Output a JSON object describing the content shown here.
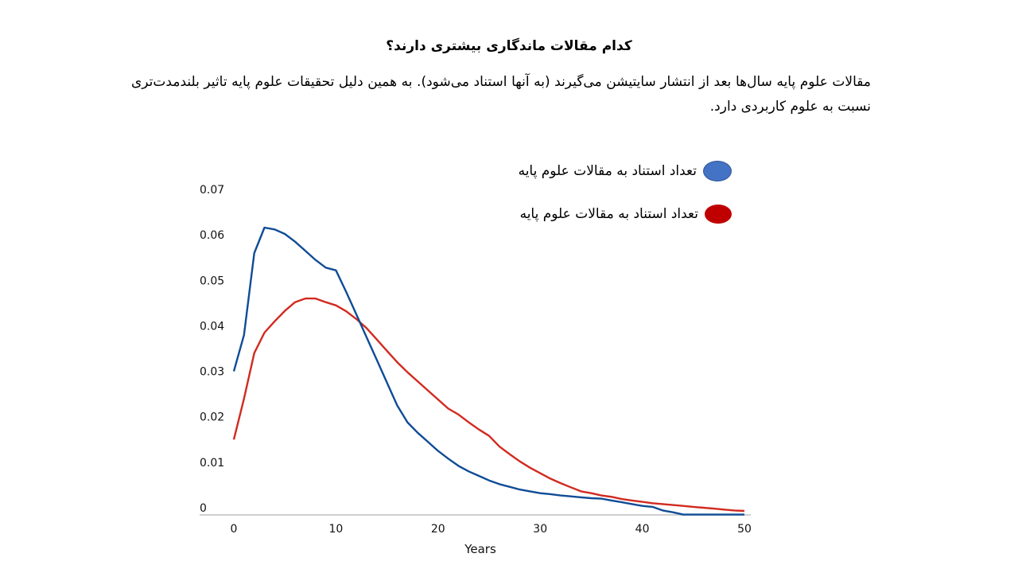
{
  "slide": {
    "title": "کدام مقالات ماندگاری بیشتری دارند؟",
    "paragraph": "مقالات علوم پایه سال‌ها بعد از انتشار سایتیشن می‌گیرند (به آنها استناد می‌شود). به همین دلیل تحقیقات علوم پایه تاثیر بلندمدت‌تری نسبت به علوم کاربردی دارد."
  },
  "legend": [
    {
      "label": "تعداد استناد به مقالات علوم پایه",
      "color": "#4472C4"
    },
    {
      "label": "تعداد استناد به مقالات علوم پایه",
      "color": "#C00000"
    }
  ],
  "chart_data": {
    "type": "line",
    "title": "",
    "xlabel": "Years",
    "ylabel": "",
    "xlim": [
      0,
      50
    ],
    "ylim": [
      0,
      0.07
    ],
    "x_ticks": [
      "0",
      "10",
      "20",
      "30",
      "40",
      "50"
    ],
    "y_ticks": [
      "0",
      "0.01",
      "0.02",
      "0.03",
      "0.04",
      "0.05",
      "0.06",
      "0.07"
    ],
    "grid": false,
    "legend_position": "top-right",
    "x": [
      0,
      1,
      2,
      3,
      4,
      5,
      6,
      7,
      8,
      9,
      10,
      11,
      12,
      13,
      14,
      15,
      16,
      17,
      18,
      19,
      20,
      21,
      22,
      23,
      24,
      25,
      26,
      27,
      28,
      29,
      30,
      31,
      32,
      33,
      34,
      35,
      36,
      37,
      38,
      39,
      40,
      41,
      42,
      43,
      44,
      45,
      46,
      47,
      48,
      49,
      50
    ],
    "series": [
      {
        "name": "تعداد استناد به مقالات علوم پایه",
        "line_color": "#0F4C96",
        "legend_color": "#4472C4",
        "values": [
          0.03,
          0.038,
          0.056,
          0.0616,
          0.0612,
          0.0602,
          0.0585,
          0.0565,
          0.0545,
          0.0528,
          0.0522,
          0.0475,
          0.0425,
          0.0375,
          0.0325,
          0.0275,
          0.0225,
          0.0188,
          0.0165,
          0.0145,
          0.0125,
          0.0108,
          0.0092,
          0.008,
          0.007,
          0.006,
          0.0052,
          0.0046,
          0.004,
          0.0036,
          0.0032,
          0.003,
          0.0027,
          0.0025,
          0.0023,
          0.0021,
          0.002,
          0.0016,
          0.0012,
          0.0008,
          0.0004,
          0.0002,
          -0.0006,
          -0.001,
          -0.0015,
          -0.0015,
          -0.0015,
          -0.0015,
          -0.0015,
          -0.0015,
          -0.0015
        ]
      },
      {
        "name": "تعداد استناد به مقالات علوم پایه",
        "line_color": "#D12A1F",
        "legend_color": "#C00000",
        "values": [
          0.015,
          0.024,
          0.034,
          0.0385,
          0.041,
          0.0433,
          0.0452,
          0.046,
          0.046,
          0.0452,
          0.0445,
          0.0432,
          0.0415,
          0.0395,
          0.037,
          0.0345,
          0.032,
          0.0298,
          0.0278,
          0.0258,
          0.0238,
          0.0218,
          0.0205,
          0.0188,
          0.0172,
          0.0158,
          0.0135,
          0.0118,
          0.0102,
          0.0088,
          0.0076,
          0.0064,
          0.0054,
          0.0045,
          0.0036,
          0.0032,
          0.0027,
          0.0024,
          0.0019,
          0.0016,
          0.0013,
          0.001,
          0.0008,
          0.0006,
          0.0004,
          0.0002,
          0.0,
          -0.0002,
          -0.0004,
          -0.0006,
          -0.0007
        ]
      }
    ]
  }
}
